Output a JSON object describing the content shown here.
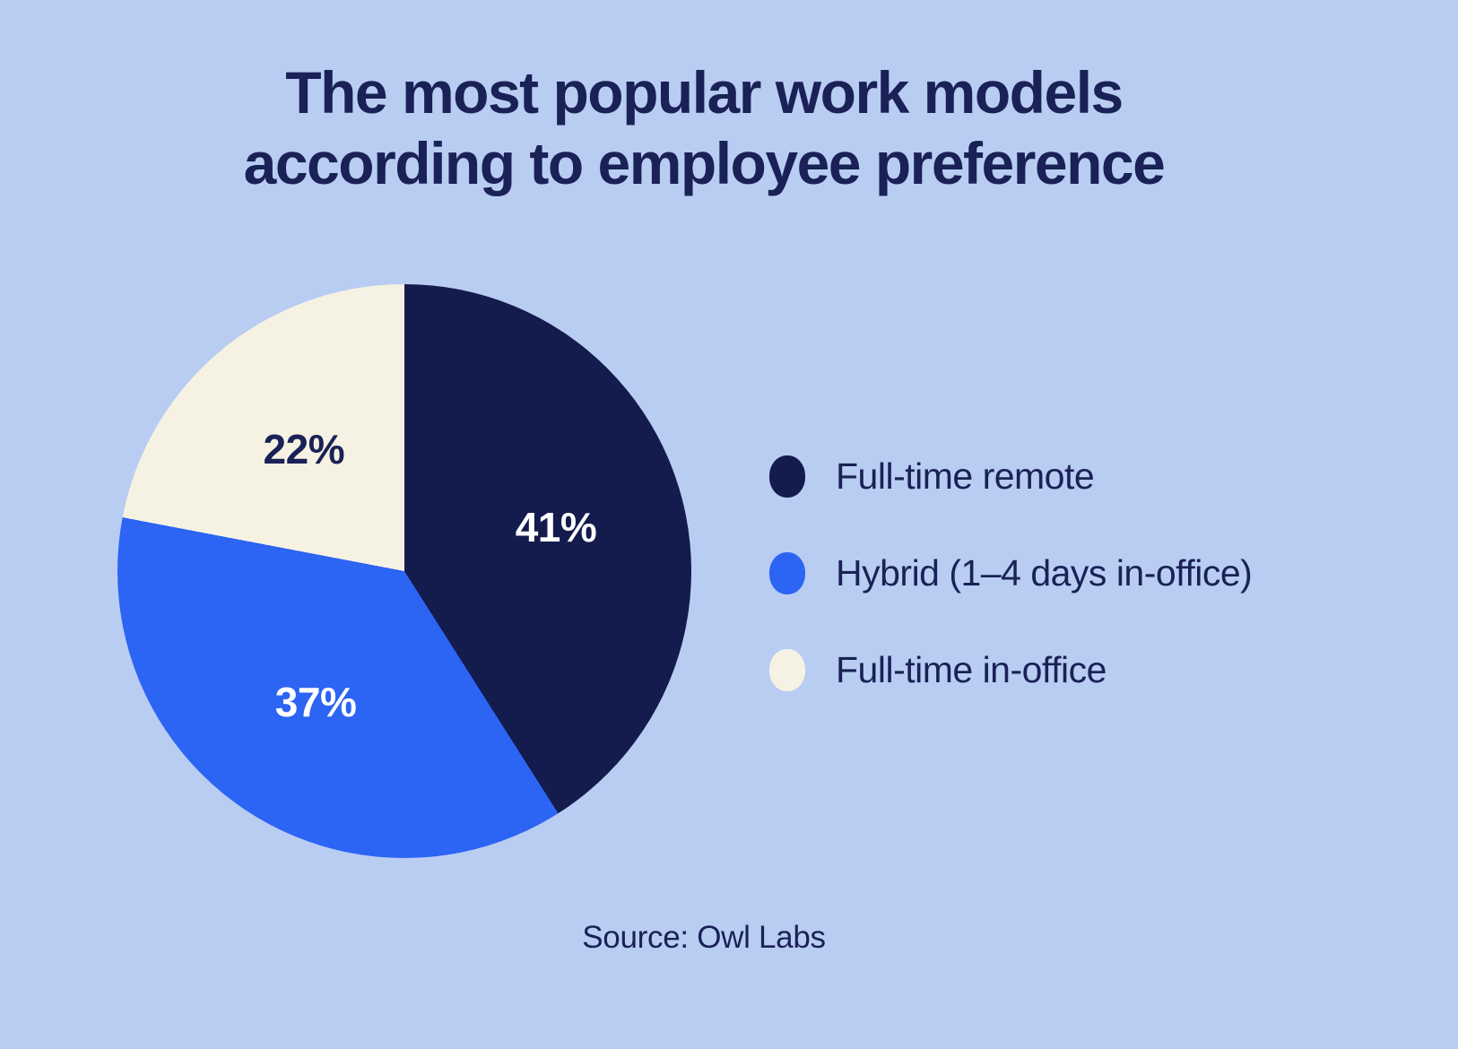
{
  "page": {
    "background_color": "#b9cdf3",
    "title_lines": [
      "The most popular work models",
      "according to employee preference"
    ],
    "title_color": "#1a2156",
    "source": "Source: Owl Labs"
  },
  "chart_data": {
    "type": "pie",
    "title": "The most popular work models according to employee preference",
    "source": "Owl Labs",
    "start_angle_deg": 0,
    "direction": "clockwise",
    "legend_position": "right",
    "categories": [
      "Full-time remote",
      "Hybrid (1–4 days in-office)",
      "Full-time in-office"
    ],
    "values": [
      41,
      37,
      22
    ],
    "slices": [
      {
        "label": "Full-time remote",
        "value": 41,
        "display": "41%",
        "color": "#141b4d",
        "label_color": "#ffffff"
      },
      {
        "label": "Hybrid (1–4 days in-office)",
        "value": 37,
        "display": "37%",
        "color": "#2c64f3",
        "label_color": "#ffffff"
      },
      {
        "label": "Full-time in-office",
        "value": 22,
        "display": "22%",
        "color": "#f6f2e3",
        "label_color": "#1a2156"
      }
    ]
  }
}
